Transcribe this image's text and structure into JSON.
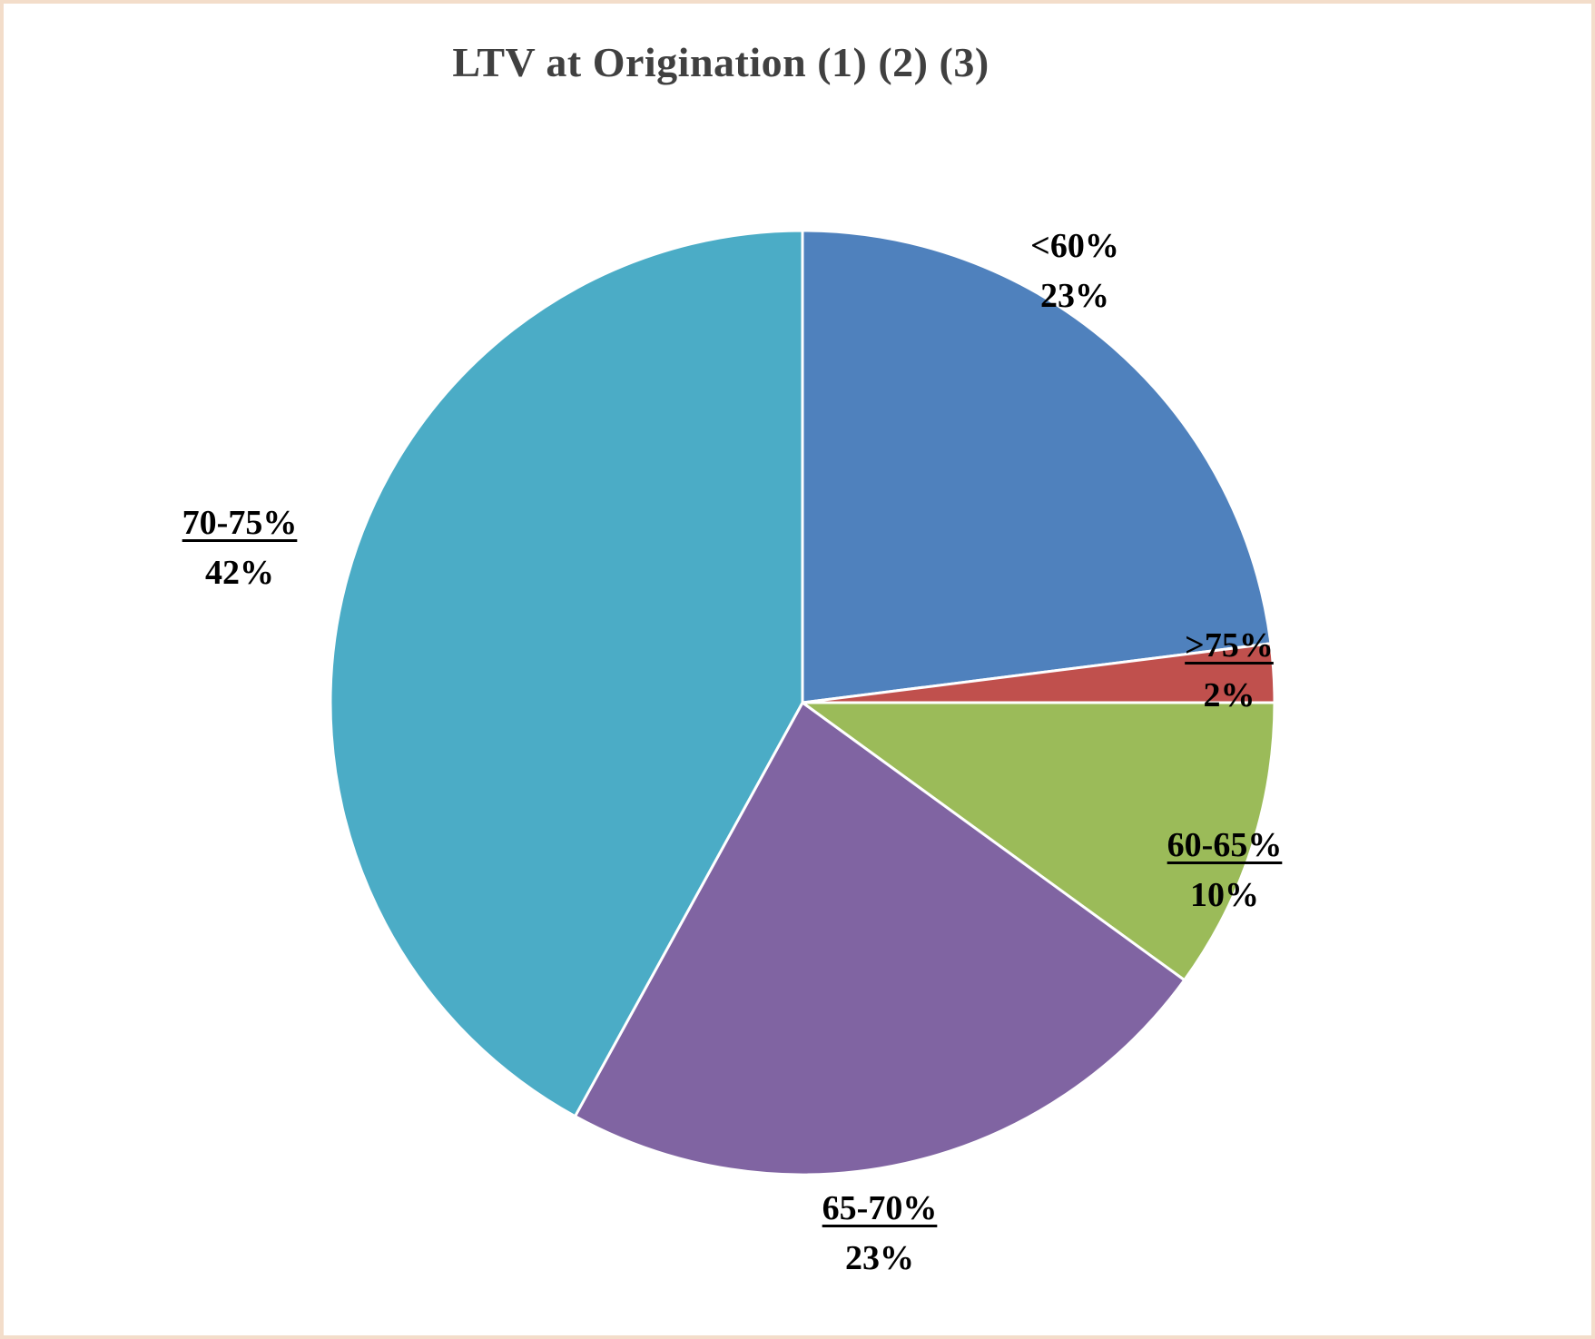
{
  "title": "LTV at Origination (1) (2) (3)",
  "chart_data": {
    "type": "pie",
    "title": "LTV at Origination (1) (2) (3)",
    "start_angle_deg": -90,
    "direction": "clockwise",
    "legend": "none",
    "slices": [
      {
        "label": "<60%",
        "value": 23,
        "value_label": "23%",
        "color": "#4F81BD",
        "underline": false
      },
      {
        "label": ">75%",
        "value": 2,
        "value_label": "2%",
        "color": "#C0504D",
        "underline": true
      },
      {
        "label": "60-65%",
        "value": 10,
        "value_label": "10%",
        "color": "#9BBB59",
        "underline": true
      },
      {
        "label": "65-70%",
        "value": 23,
        "value_label": "23%",
        "color": "#8064A2",
        "underline": true
      },
      {
        "label": "70-75%",
        "value": 42,
        "value_label": "42%",
        "color": "#4BACC6",
        "underline": true
      }
    ]
  }
}
